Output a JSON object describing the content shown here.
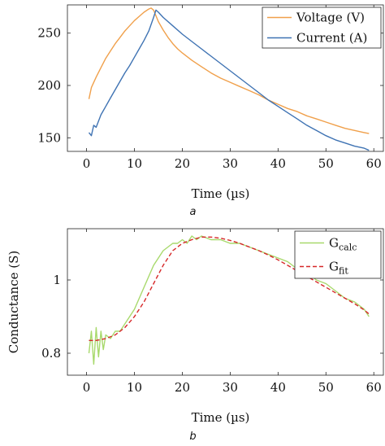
{
  "chart_data": [
    {
      "type": "line",
      "caption": "a",
      "xlabel": "Time (µs)",
      "ylabel": "",
      "xlim": [
        -4,
        62
      ],
      "ylim": [
        137,
        277
      ],
      "xticks": [
        0,
        10,
        20,
        30,
        40,
        50,
        60
      ],
      "yticks": [
        150,
        200,
        250
      ],
      "legend_position": "top-right",
      "series": [
        {
          "name": "Voltage (V)",
          "color": "#f0a04b",
          "x": [
            0.5,
            1,
            2,
            3,
            4,
            5,
            6,
            7,
            8,
            9,
            10,
            11,
            12,
            13,
            13.5,
            14,
            15,
            16,
            17,
            18,
            19,
            20,
            22,
            24,
            26,
            28,
            30,
            32,
            34,
            36,
            38,
            40,
            42,
            44,
            46,
            48,
            50,
            52,
            54,
            56,
            58,
            59
          ],
          "y": [
            187,
            198,
            208,
            217,
            226,
            233,
            240,
            246,
            252,
            257,
            262,
            266,
            270,
            273,
            274,
            272,
            261,
            253,
            246,
            240,
            235,
            231,
            224,
            218,
            212,
            207,
            203,
            199,
            195,
            191,
            186,
            182,
            178,
            175,
            171,
            168,
            165,
            162,
            159,
            157,
            155,
            154
          ]
        },
        {
          "name": "Current (A)",
          "color": "#3f73b3",
          "x": [
            0.5,
            1,
            1.5,
            2,
            3,
            4,
            5,
            6,
            7,
            8,
            9,
            10,
            11,
            12,
            13,
            14,
            14.5,
            15,
            16,
            18,
            20,
            22,
            24,
            26,
            28,
            30,
            32,
            34,
            36,
            38,
            40,
            42,
            44,
            46,
            48,
            50,
            52,
            54,
            56,
            58,
            59
          ],
          "y": [
            155,
            152,
            162,
            160,
            172,
            180,
            188,
            196,
            204,
            212,
            219,
            227,
            235,
            243,
            252,
            265,
            272,
            270,
            265,
            257,
            249,
            242,
            235,
            228,
            221,
            214,
            207,
            200,
            193,
            186,
            180,
            174,
            168,
            162,
            157,
            152,
            148,
            145,
            142,
            140,
            138
          ]
        }
      ]
    },
    {
      "type": "line",
      "caption": "b",
      "xlabel": "Time (µs)",
      "ylabel": "Conductance (S)",
      "xlim": [
        -4,
        62
      ],
      "ylim": [
        0.74,
        1.14
      ],
      "xticks": [
        0,
        10,
        20,
        30,
        40,
        50,
        60
      ],
      "yticks": [
        0.8,
        1
      ],
      "ytick_labels": [
        "0.8",
        "1"
      ],
      "legend_position": "top-right",
      "series": [
        {
          "name": "G",
          "name_subscript": "calc",
          "color": "#a8d96c",
          "x": [
            0.5,
            1,
            1.5,
            2,
            2.5,
            3,
            3.5,
            4,
            5,
            6,
            7,
            8,
            9,
            10,
            11,
            12,
            13,
            14,
            15,
            16,
            17,
            18,
            19,
            20,
            21,
            22,
            23,
            24,
            26,
            28,
            30,
            32,
            34,
            36,
            38,
            40,
            42,
            44,
            46,
            48,
            50,
            52,
            54,
            56,
            58,
            59
          ],
          "y": [
            0.8,
            0.86,
            0.77,
            0.87,
            0.79,
            0.86,
            0.81,
            0.85,
            0.84,
            0.86,
            0.86,
            0.88,
            0.9,
            0.92,
            0.95,
            0.98,
            1.01,
            1.04,
            1.06,
            1.08,
            1.09,
            1.1,
            1.1,
            1.11,
            1.1,
            1.12,
            1.11,
            1.12,
            1.11,
            1.11,
            1.1,
            1.1,
            1.09,
            1.08,
            1.07,
            1.06,
            1.05,
            1.03,
            1.02,
            1.0,
            0.99,
            0.97,
            0.95,
            0.94,
            0.92,
            0.9
          ]
        },
        {
          "name": "G",
          "name_subscript": "fit",
          "color": "#d62728",
          "dash": "dashed",
          "x": [
            0.5,
            2,
            4,
            6,
            8,
            10,
            12,
            14,
            16,
            18,
            20,
            22,
            24,
            26,
            28,
            30,
            32,
            34,
            36,
            38,
            40,
            42,
            44,
            46,
            48,
            50,
            52,
            54,
            56,
            58,
            59
          ],
          "y": [
            0.835,
            0.835,
            0.84,
            0.85,
            0.87,
            0.9,
            0.94,
            0.99,
            1.04,
            1.08,
            1.1,
            1.11,
            1.117,
            1.117,
            1.114,
            1.108,
            1.1,
            1.09,
            1.08,
            1.068,
            1.055,
            1.04,
            1.025,
            1.01,
            0.995,
            0.98,
            0.965,
            0.95,
            0.935,
            0.918,
            0.907
          ]
        }
      ]
    }
  ]
}
